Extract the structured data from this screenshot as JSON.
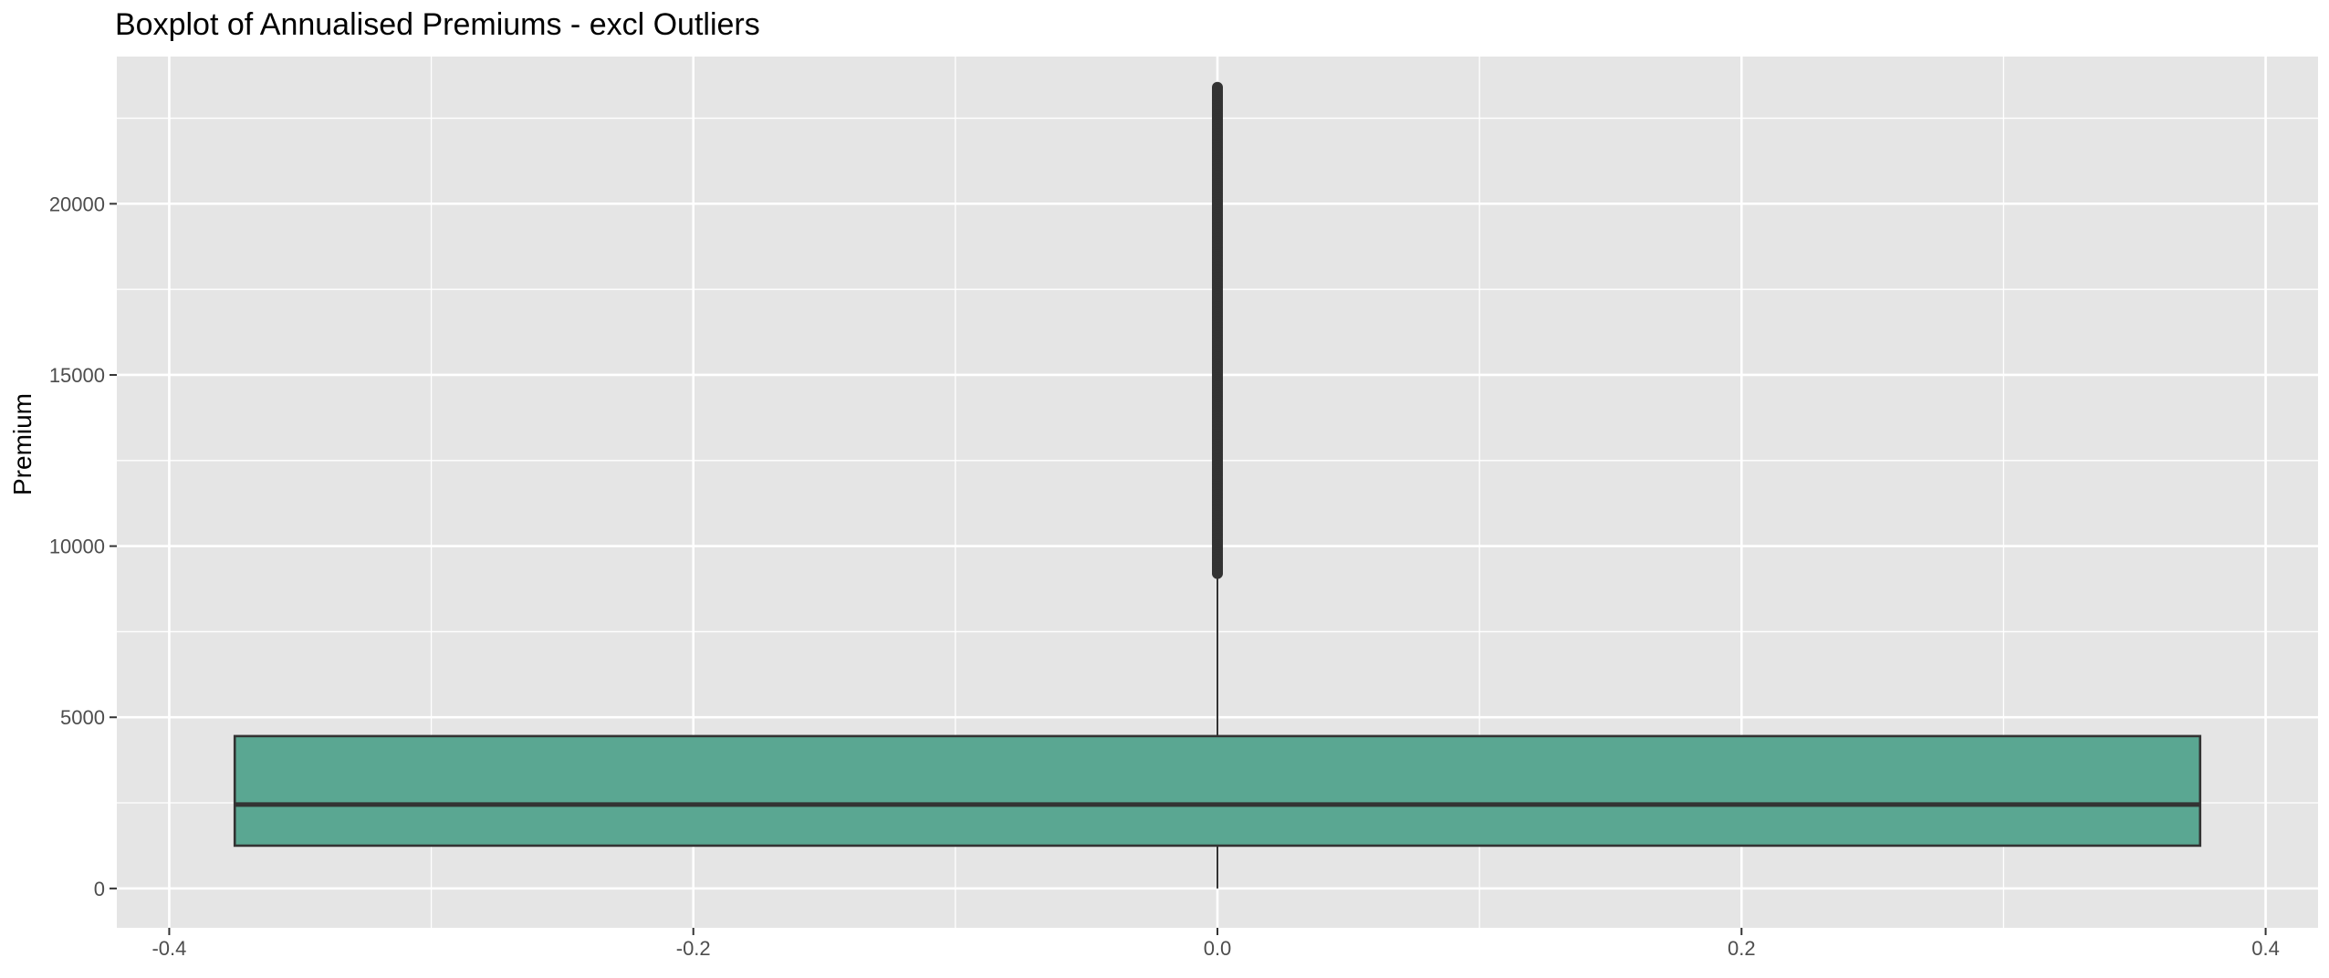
{
  "chart_data": {
    "type": "boxplot",
    "title": "Boxplot of Annualised Premiums - excl Outliers",
    "xlabel": "",
    "ylabel": "Premium",
    "xlim": [
      -0.42,
      0.42
    ],
    "ylim": [
      -1150,
      24300
    ],
    "x_ticks": [
      -0.4,
      -0.2,
      0.0,
      0.2,
      0.4
    ],
    "x_tick_labels": [
      "-0.4",
      "-0.2",
      "0.0",
      "0.2",
      "0.4"
    ],
    "y_ticks": [
      0,
      5000,
      10000,
      15000,
      20000
    ],
    "y_tick_labels": [
      "0",
      "5000",
      "10000",
      "15000",
      "20000"
    ],
    "grid": true,
    "box": {
      "x_center": 0.0,
      "x_left": -0.375,
      "x_right": 0.375,
      "min": 0,
      "q1": 1250,
      "median": 2450,
      "q3": 4450,
      "upper_whisker": 9200,
      "outliers_range": [
        9200,
        23400
      ],
      "fill": "#5aa792",
      "stroke": "#333333"
    }
  },
  "colors": {
    "panel_background": "#e5e5e5",
    "grid": "#ffffff",
    "box_fill": "#5aa792",
    "outline": "#333333",
    "text": "#4d4d4d"
  }
}
